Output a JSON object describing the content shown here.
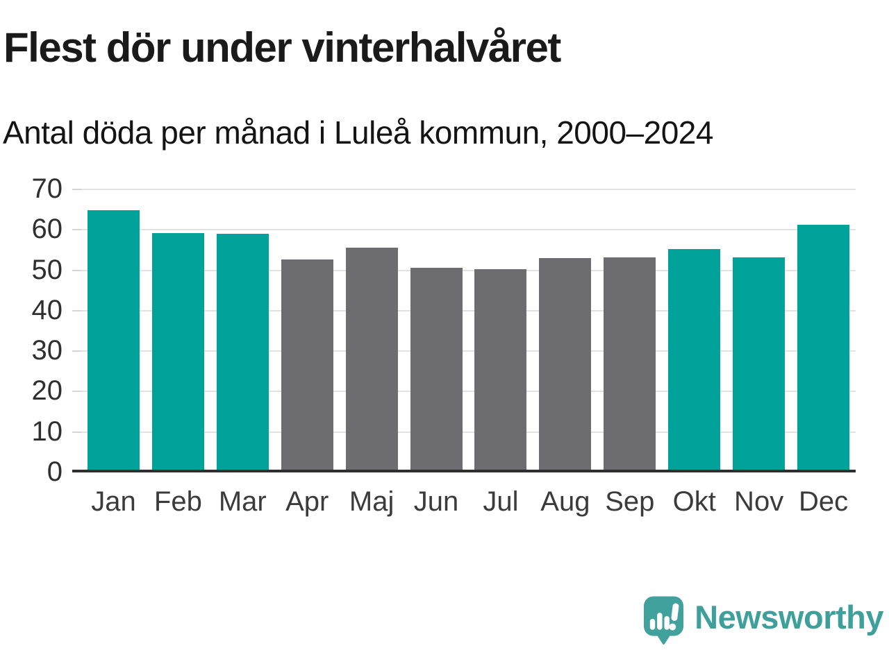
{
  "header": {
    "title": "Flest dör under vinterhalvåret",
    "subtitle": "Antal döda per månad i Luleå kommun, 2000–2024"
  },
  "chart_data": {
    "type": "bar",
    "title": "Flest dör under vinterhalvåret",
    "subtitle": "Antal döda per månad i Luleå kommun, 2000–2024",
    "categories": [
      "Jan",
      "Feb",
      "Mar",
      "Apr",
      "Maj",
      "Jun",
      "Jul",
      "Aug",
      "Sep",
      "Okt",
      "Nov",
      "Dec"
    ],
    "values": [
      64.5,
      58.9,
      58.7,
      52.4,
      55.2,
      50.3,
      50.0,
      52.7,
      52.9,
      54.9,
      52.8,
      60.9
    ],
    "bar_color_keys": [
      "winter",
      "winter",
      "winter",
      "summer",
      "summer",
      "summer",
      "summer",
      "summer",
      "summer",
      "winter",
      "winter",
      "winter"
    ],
    "xlabel": "",
    "ylabel": "",
    "ylim": [
      0,
      70
    ],
    "yticks": [
      70,
      60,
      50,
      40,
      30,
      20,
      10,
      0
    ],
    "grid": "horizontal",
    "legend": "none"
  },
  "colors": {
    "winter": "#00a29a",
    "summer": "#6d6c71",
    "gridline": "#e2e2e2",
    "axis": "#2e2e2e",
    "tick_label": "#2f2f2f",
    "title_text": "#1a1a1a",
    "brand_teal": "#3f9f9a"
  },
  "footer": {
    "brand": "Newsworthy"
  }
}
